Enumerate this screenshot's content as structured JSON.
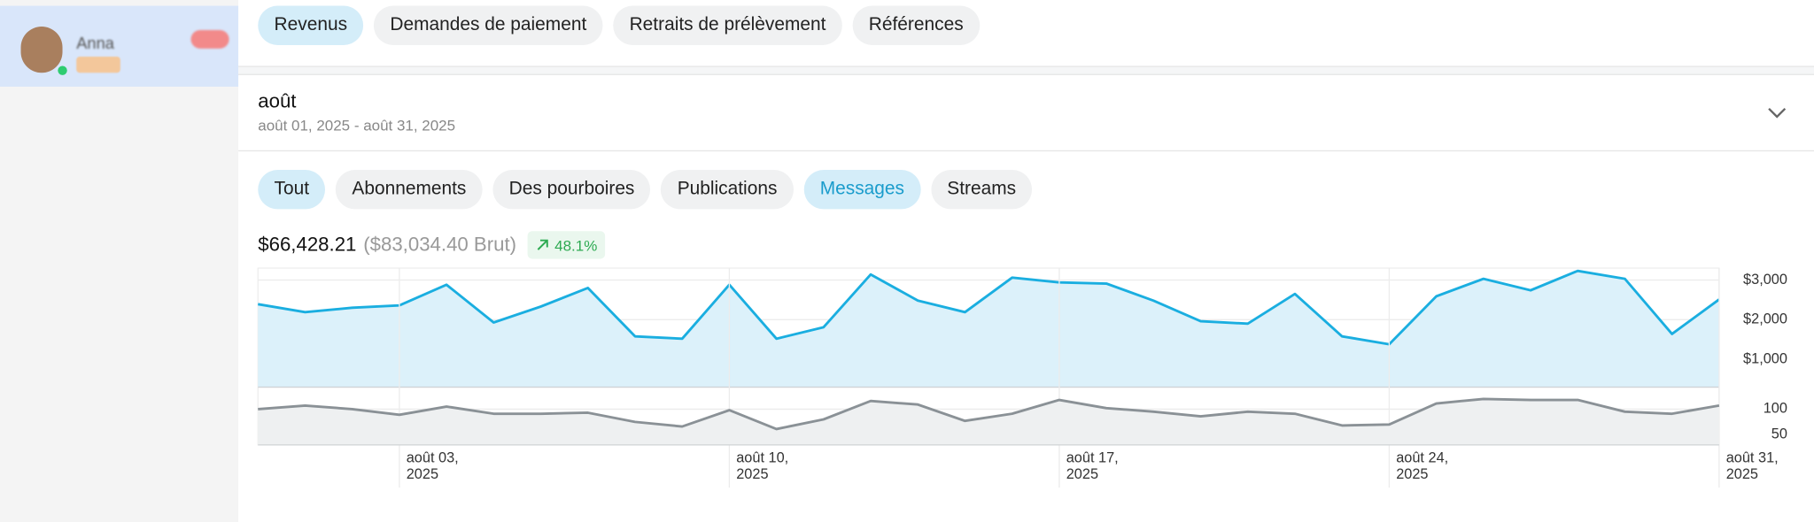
{
  "sidebar": {
    "user_name": "Anna"
  },
  "tabs": [
    {
      "label": "Revenus",
      "active": true
    },
    {
      "label": "Demandes de paiement",
      "active": false
    },
    {
      "label": "Retraits de prélèvement",
      "active": false
    },
    {
      "label": "Références",
      "active": false
    }
  ],
  "period": {
    "title": "août",
    "range": "août 01, 2025 - août 31, 2025"
  },
  "filters": [
    {
      "label": "Tout",
      "state": "selected"
    },
    {
      "label": "Abonnements",
      "state": null
    },
    {
      "label": "Des pourboires",
      "state": null
    },
    {
      "label": "Publications",
      "state": null
    },
    {
      "label": "Messages",
      "state": "hover"
    },
    {
      "label": "Streams",
      "state": null
    }
  ],
  "summary": {
    "net": "$66,428.21",
    "gross": "($83,034.40 Brut)",
    "change": "48.1%"
  },
  "chart_data": [
    {
      "type": "area",
      "x": [
        "2025-07-31",
        "2025-08-01",
        "2025-08-02",
        "2025-08-03",
        "2025-08-04",
        "2025-08-05",
        "2025-08-06",
        "2025-08-07",
        "2025-08-08",
        "2025-08-09",
        "2025-08-10",
        "2025-08-11",
        "2025-08-12",
        "2025-08-13",
        "2025-08-14",
        "2025-08-15",
        "2025-08-16",
        "2025-08-17",
        "2025-08-18",
        "2025-08-19",
        "2025-08-20",
        "2025-08-21",
        "2025-08-22",
        "2025-08-23",
        "2025-08-24",
        "2025-08-25",
        "2025-08-26",
        "2025-08-27",
        "2025-08-28",
        "2025-08-29",
        "2025-08-30",
        "2025-08-31"
      ],
      "values": [
        2390,
        2190,
        2300,
        2360,
        2880,
        1930,
        2330,
        2800,
        1580,
        1520,
        2880,
        1520,
        1810,
        3140,
        2480,
        2190,
        3060,
        2940,
        2910,
        2480,
        1960,
        1900,
        2650,
        1580,
        1380,
        2590,
        3030,
        2740,
        3230,
        3030,
        1640,
        2510
      ],
      "color": "#1aaee0",
      "fill": "#dcf1fa",
      "xlim": [
        "2025-07-31",
        "2025-08-31"
      ],
      "ylim": [
        300,
        3300
      ],
      "yticks": [
        {
          "value": 1000,
          "label": "$1,000"
        },
        {
          "value": 2000,
          "label": "$2,000"
        },
        {
          "value": 3000,
          "label": "$3,000"
        }
      ],
      "grid": true
    },
    {
      "type": "area",
      "x": [
        "2025-07-31",
        "2025-08-01",
        "2025-08-02",
        "2025-08-03",
        "2025-08-04",
        "2025-08-05",
        "2025-08-06",
        "2025-08-07",
        "2025-08-08",
        "2025-08-09",
        "2025-08-10",
        "2025-08-11",
        "2025-08-12",
        "2025-08-13",
        "2025-08-14",
        "2025-08-15",
        "2025-08-16",
        "2025-08-17",
        "2025-08-18",
        "2025-08-19",
        "2025-08-20",
        "2025-08-21",
        "2025-08-22",
        "2025-08-23",
        "2025-08-24",
        "2025-08-25",
        "2025-08-26",
        "2025-08-27",
        "2025-08-28",
        "2025-08-29",
        "2025-08-30",
        "2025-08-31"
      ],
      "values": [
        100,
        107,
        100,
        89,
        105,
        91,
        91,
        93,
        75,
        66,
        98,
        61,
        80,
        116,
        109,
        77,
        91,
        118,
        102,
        95,
        86,
        95,
        91,
        68,
        70,
        111,
        120,
        118,
        118,
        95,
        91,
        107
      ],
      "color": "#8a9196",
      "fill": "#eef0f1",
      "xlim": [
        "2025-07-31",
        "2025-08-31"
      ],
      "ylim": [
        30,
        125
      ],
      "yticks": [
        50,
        100
      ],
      "xticks": [
        {
          "value": "2025-08-03",
          "label": "août 03, 2025"
        },
        {
          "value": "2025-08-10",
          "label": "août 10, 2025"
        },
        {
          "value": "2025-08-17",
          "label": "août 17, 2025"
        },
        {
          "value": "2025-08-24",
          "label": "août 24, 2025"
        },
        {
          "value": "2025-08-31",
          "label": "août 31, 2025"
        }
      ],
      "grid": true
    }
  ]
}
